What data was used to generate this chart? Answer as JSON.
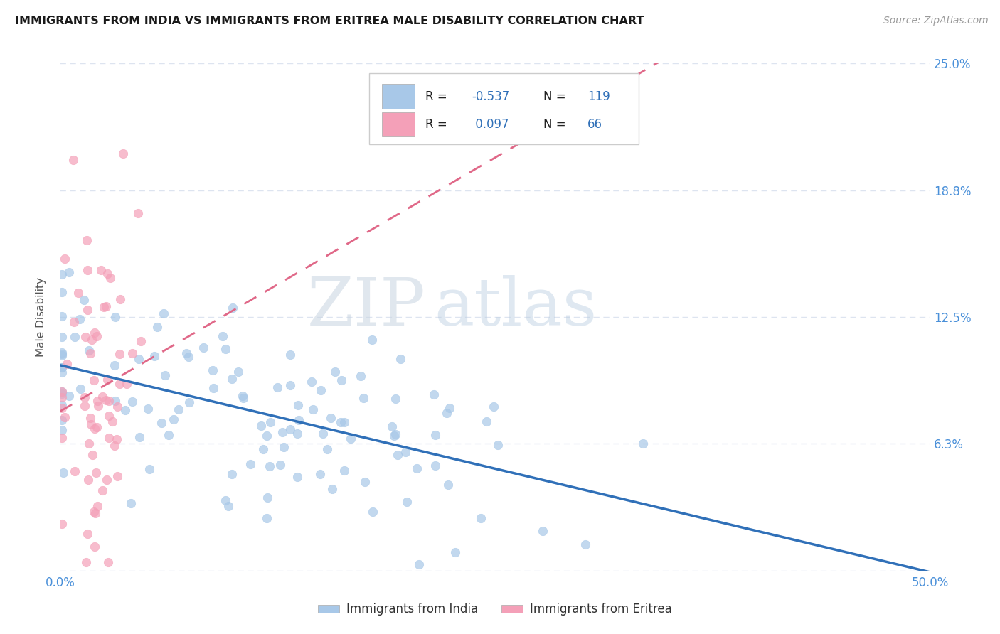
{
  "title": "IMMIGRANTS FROM INDIA VS IMMIGRANTS FROM ERITREA MALE DISABILITY CORRELATION CHART",
  "source": "Source: ZipAtlas.com",
  "ylabel": "Male Disability",
  "x_min": 0.0,
  "x_max": 0.5,
  "y_min": 0.0,
  "y_max": 0.25,
  "y_ticks": [
    0.0,
    0.0625,
    0.125,
    0.1875,
    0.25
  ],
  "y_tick_labels": [
    "",
    "6.3%",
    "12.5%",
    "18.8%",
    "25.0%"
  ],
  "india_color": "#a8c8e8",
  "eritrea_color": "#f4a0b8",
  "india_line_color": "#3070b8",
  "eritrea_line_color": "#e06888",
  "india_R": -0.537,
  "india_N": 119,
  "eritrea_R": 0.097,
  "eritrea_N": 66,
  "watermark_zip": "ZIP",
  "watermark_atlas": "atlas",
  "background_color": "#ffffff",
  "grid_color": "#dde4f0",
  "legend_R_color": "#3070b8",
  "legend_text_color": "#222222"
}
